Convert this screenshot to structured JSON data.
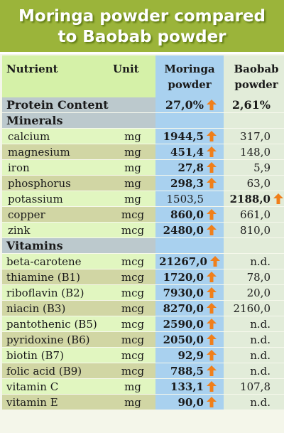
{
  "title": [
    "Moringa powder compared",
    "to Baobab powder"
  ],
  "headers": {
    "nutrient": "Nutrient",
    "unit": "Unit",
    "moringa": [
      "Moringa",
      "powder"
    ],
    "baobab": [
      "Baobab",
      "powder"
    ]
  },
  "rows": [
    {
      "type": "protein",
      "nutrient": "Protein Content",
      "unit": "",
      "moringa": "27,0%",
      "moringa_higher": true,
      "baobab": "2,61%",
      "baobab_higher": false
    },
    {
      "type": "section",
      "nutrient": "Minerals"
    },
    {
      "type": "item",
      "nutrient": "calcium",
      "unit": "mg",
      "moringa": "1944,5",
      "moringa_higher": true,
      "baobab": "317,0",
      "baobab_higher": false
    },
    {
      "type": "item",
      "nutrient": "magnesium",
      "unit": "mg",
      "moringa": "451,4",
      "moringa_higher": true,
      "baobab": "148,0",
      "baobab_higher": false
    },
    {
      "type": "item",
      "nutrient": "iron",
      "unit": "mg",
      "moringa": "27,8",
      "moringa_higher": true,
      "baobab": "5,9",
      "baobab_higher": false
    },
    {
      "type": "item",
      "nutrient": "phosphorus",
      "unit": "mg",
      "moringa": "298,3",
      "moringa_higher": true,
      "baobab": "63,0",
      "baobab_higher": false
    },
    {
      "type": "item",
      "nutrient": "potassium",
      "unit": "mg",
      "moringa": "1503,5",
      "moringa_higher": false,
      "baobab": "2188,0",
      "baobab_higher": true
    },
    {
      "type": "item",
      "nutrient": "copper",
      "unit": "mcg",
      "moringa": "860,0",
      "moringa_higher": true,
      "baobab": "661,0",
      "baobab_higher": false
    },
    {
      "type": "item",
      "nutrient": "zink",
      "unit": "mcg",
      "moringa": "2480,0",
      "moringa_higher": true,
      "baobab": "810,0",
      "baobab_higher": false
    },
    {
      "type": "section",
      "nutrient": "Vitamins"
    },
    {
      "type": "vit",
      "nutrient": "beta-carotene",
      "unit": "mcg",
      "moringa": "21267,0",
      "moringa_higher": true,
      "baobab": "n.d.",
      "baobab_higher": false
    },
    {
      "type": "vit",
      "nutrient": "thiamine (B1)",
      "unit": "mcg",
      "moringa": "1720,0",
      "moringa_higher": true,
      "baobab": "78,0",
      "baobab_higher": false
    },
    {
      "type": "vit",
      "nutrient": "riboflavin (B2)",
      "unit": "mcg",
      "moringa": "7930,0",
      "moringa_higher": true,
      "baobab": "20,0",
      "baobab_higher": false
    },
    {
      "type": "vit",
      "nutrient": "niacin (B3)",
      "unit": "mcg",
      "moringa": "8270,0",
      "moringa_higher": true,
      "baobab": "2160,0",
      "baobab_higher": false
    },
    {
      "type": "vit",
      "nutrient": "pantothenic (B5)",
      "unit": "mcg",
      "moringa": "2590,0",
      "moringa_higher": true,
      "baobab": "n.d.",
      "baobab_higher": false
    },
    {
      "type": "vit",
      "nutrient": "pyridoxine (B6)",
      "unit": "mcg",
      "moringa": "2050,0",
      "moringa_higher": true,
      "baobab": "n.d.",
      "baobab_higher": false
    },
    {
      "type": "vit",
      "nutrient": "biotin (B7)",
      "unit": "mcg",
      "moringa": "92,9",
      "moringa_higher": true,
      "baobab": "n.d.",
      "baobab_higher": false
    },
    {
      "type": "vit",
      "nutrient": "folic acid (B9)",
      "unit": "mcg",
      "moringa": "788,5",
      "moringa_higher": true,
      "baobab": "n.d.",
      "baobab_higher": false
    },
    {
      "type": "vit",
      "nutrient": "vitamin C",
      "unit": "mg",
      "moringa": "133,1",
      "moringa_higher": true,
      "baobab": "107,8",
      "baobab_higher": false
    },
    {
      "type": "vit",
      "nutrient": "vitamin E",
      "unit": "mg",
      "moringa": "90,0",
      "moringa_higher": true,
      "baobab": "n.d.",
      "baobab_higher": false
    }
  ],
  "colors": {
    "title_bg": "#9bb43a",
    "moringa_col": "#a9d1ef",
    "baobab_col": "#e2ecd9",
    "arrow": "#f07f1b"
  },
  "icons": {
    "higher": "up-arrow-icon"
  }
}
